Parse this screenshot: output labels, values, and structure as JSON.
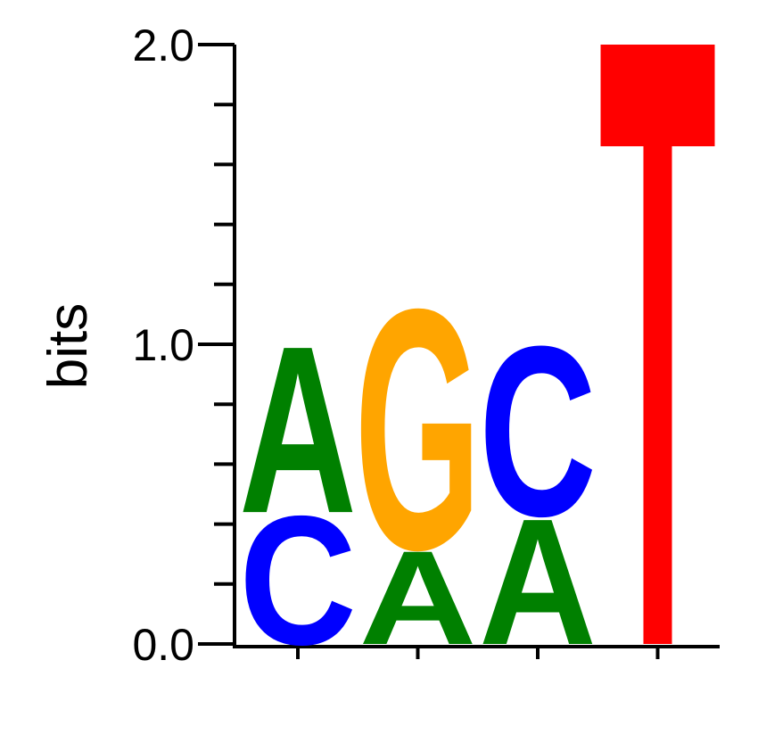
{
  "chart_data": {
    "type": "sequence-logo",
    "ylabel": "bits",
    "ylim": [
      0,
      2
    ],
    "y_ticks": [
      {
        "value": 0,
        "label": "0.0"
      },
      {
        "value": 1,
        "label": "1.0"
      },
      {
        "value": 2,
        "label": "2.0"
      }
    ],
    "y_minor_step": 0.2,
    "positions": [
      {
        "stack": [
          {
            "letter": "C",
            "height": 0.44
          },
          {
            "letter": "A",
            "height": 0.57
          }
        ]
      },
      {
        "stack": [
          {
            "letter": "A",
            "height": 0.32
          },
          {
            "letter": "G",
            "height": 0.82
          }
        ]
      },
      {
        "stack": [
          {
            "letter": "A",
            "height": 0.43
          },
          {
            "letter": "C",
            "height": 0.58
          }
        ]
      },
      {
        "stack": [
          {
            "letter": "T",
            "height": 2.0
          }
        ]
      }
    ],
    "colors": {
      "A": "#008000",
      "C": "#0000ff",
      "G": "#ffa500",
      "T": "#ff0000"
    }
  }
}
